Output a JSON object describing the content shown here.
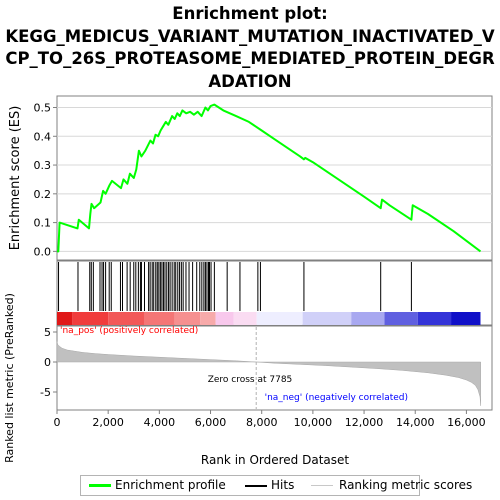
{
  "title_lines": [
    "Enrichment plot:",
    "KEGG_MEDICUS_VARIANT_MUTATION_INACTIVATED_V",
    "CP_TO_26S_PROTEASOME_MEDIATED_PROTEIN_DEGR",
    "ADATION"
  ],
  "colors": {
    "es_line": "#00ff00",
    "hits": "#000000",
    "metric_fill": "#c0c0c0",
    "pos_label": "#ff0000",
    "neg_label": "#0000ff",
    "zero_line": "#b0b0b0"
  },
  "chart_data": [
    {
      "type": "line",
      "panel": "enrichment-score",
      "ylabel": "Enrichment score (ES)",
      "xlim": [
        0,
        17000
      ],
      "ylim": [
        -0.03,
        0.54
      ],
      "yticks": [
        0.0,
        0.1,
        0.2,
        0.3,
        0.4,
        0.5
      ],
      "ytick_labels": [
        "0.0",
        "0.1",
        "0.2",
        "0.3",
        "0.4",
        "0.5"
      ],
      "grid": true,
      "series": [
        {
          "name": "Enrichment profile",
          "x": [
            0,
            50,
            100,
            800,
            850,
            1250,
            1300,
            1350,
            1450,
            1700,
            1800,
            1900,
            2050,
            2150,
            2500,
            2600,
            2750,
            2850,
            3000,
            3100,
            3200,
            3300,
            3450,
            3650,
            3750,
            3850,
            3950,
            4050,
            4150,
            4250,
            4350,
            4500,
            4600,
            4700,
            4800,
            4900,
            5050,
            5200,
            5350,
            5500,
            5650,
            5800,
            5900,
            6000,
            6150,
            6500,
            7000,
            7500,
            8000,
            8500,
            9000,
            9500,
            9650,
            9700,
            10000,
            11000,
            12000,
            12650,
            12700,
            13000,
            13850,
            13900,
            14500,
            15500,
            16550
          ],
          "y": [
            0.0,
            0.0,
            0.1,
            0.08,
            0.11,
            0.08,
            0.13,
            0.165,
            0.15,
            0.17,
            0.21,
            0.2,
            0.23,
            0.245,
            0.22,
            0.25,
            0.235,
            0.27,
            0.255,
            0.285,
            0.35,
            0.33,
            0.35,
            0.385,
            0.375,
            0.405,
            0.4,
            0.42,
            0.435,
            0.45,
            0.44,
            0.47,
            0.46,
            0.48,
            0.47,
            0.49,
            0.48,
            0.485,
            0.475,
            0.485,
            0.47,
            0.5,
            0.49,
            0.505,
            0.51,
            0.49,
            0.47,
            0.45,
            0.42,
            0.39,
            0.36,
            0.33,
            0.32,
            0.325,
            0.31,
            0.25,
            0.19,
            0.15,
            0.18,
            0.16,
            0.11,
            0.16,
            0.13,
            0.07,
            0.0
          ]
        }
      ]
    },
    {
      "type": "scatter",
      "panel": "hits",
      "hit_ranks": [
        60,
        820,
        1280,
        1340,
        1420,
        1680,
        1760,
        1820,
        1900,
        2040,
        2120,
        2480,
        2560,
        2740,
        2860,
        3000,
        3080,
        3180,
        3260,
        3300,
        3420,
        3580,
        3640,
        3720,
        3780,
        3860,
        3920,
        3980,
        4040,
        4100,
        4160,
        4220,
        4290,
        4360,
        4420,
        4500,
        4580,
        4640,
        4720,
        4790,
        4860,
        4930,
        5040,
        5160,
        5300,
        5460,
        5580,
        5660,
        5740,
        5800,
        5860,
        5920,
        5960,
        6020,
        6150,
        6650,
        7150,
        7850,
        7950,
        9650,
        12650,
        13850
      ]
    },
    {
      "type": "area",
      "panel": "ranked-metric",
      "ylabel": "Ranked list metric (PreRanked)",
      "xlabel": "Rank in Ordered Dataset",
      "xlim": [
        0,
        17000
      ],
      "ylim": [
        -8,
        6
      ],
      "yticks": [
        -5,
        0,
        5
      ],
      "ytick_labels": [
        "-5",
        "0",
        "5"
      ],
      "xticks": [
        0,
        2000,
        4000,
        6000,
        8000,
        10000,
        12000,
        14000,
        16000
      ],
      "xtick_labels": [
        "0",
        "2,000",
        "4,000",
        "6,000",
        "8,000",
        "10,000",
        "12,000",
        "14,000",
        "16,000"
      ],
      "x": [
        0,
        30,
        100,
        200,
        400,
        700,
        1000,
        1500,
        2000,
        3000,
        4000,
        5000,
        6000,
        7000,
        7785,
        8500,
        9500,
        10500,
        11500,
        12500,
        13500,
        14500,
        15200,
        15700,
        16000,
        16200,
        16350,
        16450,
        16530,
        16560
      ],
      "values": [
        3.4,
        2.9,
        2.6,
        2.3,
        2.0,
        1.8,
        1.6,
        1.4,
        1.25,
        1.0,
        0.8,
        0.6,
        0.4,
        0.2,
        0.0,
        -0.2,
        -0.4,
        -0.6,
        -0.85,
        -1.1,
        -1.4,
        -1.8,
        -2.2,
        -2.6,
        -3.0,
        -3.4,
        -3.9,
        -4.6,
        -5.8,
        -7.3
      ],
      "annotations": {
        "zero_cross": "Zero cross at 7785",
        "pos_label": "'na_pos' (positively correlated)",
        "neg_label": "'na_neg' (negatively correlated)"
      }
    }
  ],
  "legend": {
    "items": [
      {
        "label": "Enrichment profile"
      },
      {
        "label": "Hits"
      },
      {
        "label": "Ranking metric scores"
      }
    ]
  }
}
